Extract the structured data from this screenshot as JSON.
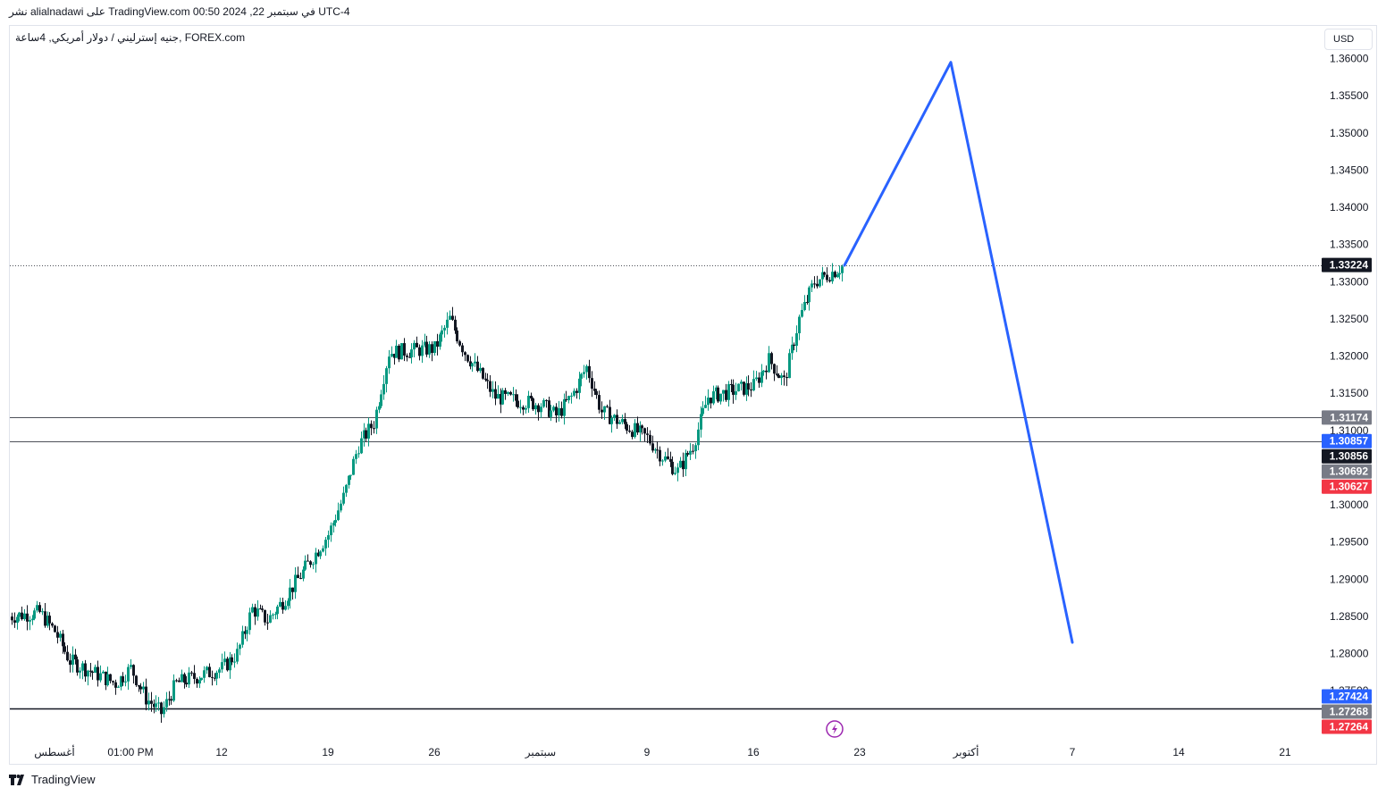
{
  "header": {
    "publish_line": "نشر alialnadawi على TradingView.com 00:50 2024 ,22 في سبتمبر UTC-4"
  },
  "legend": {
    "symbol": "جنيه إسترليني / دولار أمريكي, 4ساعة, FOREX.com"
  },
  "currency_button": {
    "label": "USD"
  },
  "footer": {
    "brand": "TradingView"
  },
  "colors": {
    "up": "#089981",
    "down": "#131722",
    "projection": "#2962ff",
    "badge_last": "#131722",
    "badge_blue": "#2962ff",
    "badge_gray": "#787b86",
    "badge_red": "#f23645",
    "marker": "#9c27b0"
  },
  "icons": {
    "event_marker": "lightning-icon",
    "logo": "tradingview-logo-icon"
  },
  "chart_data": {
    "type": "candlestick",
    "y_axis": {
      "ticks": [
        "1.36000",
        "1.35500",
        "1.35000",
        "1.34500",
        "1.34000",
        "1.33500",
        "1.33000",
        "1.32500",
        "1.32000",
        "1.31500",
        "1.31000",
        "1.30000",
        "1.29500",
        "1.29000",
        "1.28500",
        "1.28000",
        "1.27500"
      ],
      "range": [
        1.2685,
        1.3625
      ]
    },
    "x_axis": {
      "tick_labels": [
        "أغسطس",
        "01:00 PM",
        "12",
        "19",
        "26",
        "سبتمبر",
        "9",
        "16",
        "23",
        "أكتوبر",
        "7",
        "14",
        "21"
      ]
    },
    "price_levels": [
      {
        "name": "last-price",
        "value": 1.33224,
        "label": "1.33224",
        "style": "dotted"
      },
      {
        "name": "level-1",
        "value": 1.31174,
        "label": "1.31174",
        "style": "solid"
      },
      {
        "name": "level-2",
        "value": 1.30857,
        "label": "1.30857",
        "style": "solid"
      },
      {
        "name": "level-3",
        "value": 1.27264,
        "label": "1.27264",
        "style": "solid-bold"
      }
    ],
    "axis_badges": [
      {
        "label": "1.33224",
        "value": 1.33224,
        "color": "#131722"
      },
      {
        "label": "1.31174",
        "value": 1.31174,
        "color": "#787b86"
      },
      {
        "label": "1.30857",
        "value": 1.30857,
        "color": "#2962ff"
      },
      {
        "label": "1.30856",
        "value": 1.30856,
        "color": "#131722"
      },
      {
        "label": "1.30692",
        "value": 1.30692,
        "color": "#787b86"
      },
      {
        "label": "1.30627",
        "value": 1.30627,
        "color": "#f23645"
      },
      {
        "label": "1.27424",
        "value": 1.27424,
        "color": "#2962ff"
      },
      {
        "label": "1.27268",
        "value": 1.27268,
        "color": "#787b86"
      },
      {
        "label": "1.27264",
        "value": 1.27264,
        "color": "#f23645"
      }
    ],
    "price_path": [
      [
        "2024-07-29",
        1.285
      ],
      [
        "2024-07-31",
        1.2855
      ],
      [
        "2024-08-01",
        1.283
      ],
      [
        "2024-08-02",
        1.279
      ],
      [
        "2024-08-05",
        1.276
      ],
      [
        "2024-08-06",
        1.278
      ],
      [
        "2024-08-07",
        1.274
      ],
      [
        "2024-08-08",
        1.272
      ],
      [
        "2024-08-09",
        1.276
      ],
      [
        "2024-08-12",
        1.278
      ],
      [
        "2024-08-13",
        1.28
      ],
      [
        "2024-08-14",
        1.286
      ],
      [
        "2024-08-15",
        1.2845
      ],
      [
        "2024-08-16",
        1.287
      ],
      [
        "2024-08-19",
        1.296
      ],
      [
        "2024-08-20",
        1.301
      ],
      [
        "2024-08-21",
        1.308
      ],
      [
        "2024-08-22",
        1.311
      ],
      [
        "2024-08-23",
        1.3205
      ],
      [
        "2024-08-26",
        1.321
      ],
      [
        "2024-08-27",
        1.325
      ],
      [
        "2024-08-28",
        1.3205
      ],
      [
        "2024-08-29",
        1.3175
      ],
      [
        "2024-08-30",
        1.3145
      ],
      [
        "2024-09-02",
        1.3135
      ],
      [
        "2024-09-03",
        1.312
      ],
      [
        "2024-09-04",
        1.3145
      ],
      [
        "2024-09-05",
        1.3185
      ],
      [
        "2024-09-06",
        1.3125
      ],
      [
        "2024-09-09",
        1.309
      ],
      [
        "2024-09-10",
        1.3065
      ],
      [
        "2024-09-11",
        1.3045
      ],
      [
        "2024-09-12",
        1.308
      ],
      [
        "2024-09-13",
        1.3145
      ],
      [
        "2024-09-16",
        1.316
      ],
      [
        "2024-09-17",
        1.3195
      ],
      [
        "2024-09-18",
        1.3165
      ],
      [
        "2024-09-19",
        1.325
      ],
      [
        "2024-09-20",
        1.33
      ],
      [
        "2024-09-22",
        1.3322
      ]
    ],
    "projection": [
      [
        "2024-09-22",
        1.3322
      ],
      [
        "2024-09-29",
        1.3595
      ],
      [
        "2024-10-07",
        1.2815
      ]
    ]
  }
}
